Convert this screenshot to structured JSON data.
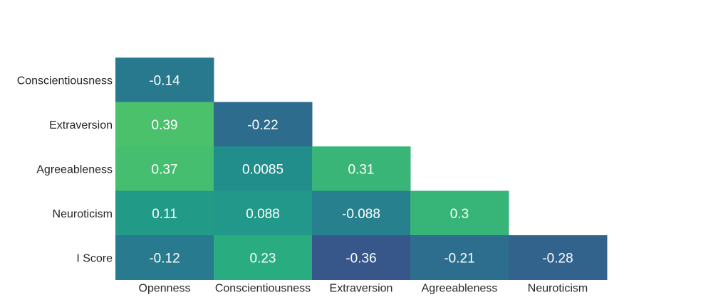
{
  "chart_data": {
    "type": "heatmap",
    "title": "",
    "row_labels": [
      "Conscientiousness",
      "Extraversion",
      "Agreeableness",
      "Neuroticism",
      "I Score"
    ],
    "col_labels": [
      "Openness",
      "Conscientiousness",
      "Extraversion",
      "Agreeableness",
      "Neuroticism"
    ],
    "cells": [
      {
        "row": 0,
        "col": 0,
        "value": -0.14,
        "label": "-0.14"
      },
      {
        "row": 1,
        "col": 0,
        "value": 0.39,
        "label": "0.39"
      },
      {
        "row": 1,
        "col": 1,
        "value": -0.22,
        "label": "-0.22"
      },
      {
        "row": 2,
        "col": 0,
        "value": 0.37,
        "label": "0.37"
      },
      {
        "row": 2,
        "col": 1,
        "value": 0.0085,
        "label": "0.0085"
      },
      {
        "row": 2,
        "col": 2,
        "value": 0.31,
        "label": "0.31"
      },
      {
        "row": 3,
        "col": 0,
        "value": 0.11,
        "label": "0.11"
      },
      {
        "row": 3,
        "col": 1,
        "value": 0.088,
        "label": "0.088"
      },
      {
        "row": 3,
        "col": 2,
        "value": -0.088,
        "label": "-0.088"
      },
      {
        "row": 3,
        "col": 3,
        "value": 0.3,
        "label": "0.3"
      },
      {
        "row": 4,
        "col": 0,
        "value": -0.12,
        "label": "-0.12"
      },
      {
        "row": 4,
        "col": 1,
        "value": 0.23,
        "label": "0.23"
      },
      {
        "row": 4,
        "col": 2,
        "value": -0.36,
        "label": "-0.36"
      },
      {
        "row": 4,
        "col": 3,
        "value": -0.21,
        "label": "-0.21"
      },
      {
        "row": 4,
        "col": 4,
        "value": -0.28,
        "label": "-0.28"
      }
    ],
    "value_range": [
      -0.4,
      0.4
    ],
    "colormap": "viridis",
    "colorbar": false,
    "grid": false
  }
}
